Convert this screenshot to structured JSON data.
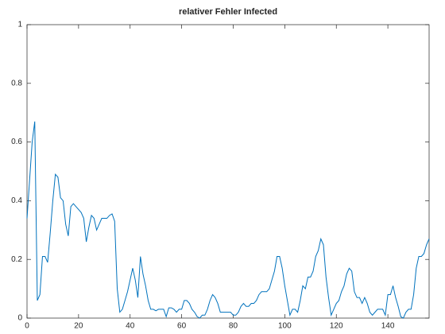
{
  "chart_data": {
    "type": "line",
    "title": "relativer Fehler Infected",
    "x": [
      0,
      1,
      2,
      3,
      4,
      5,
      6,
      7,
      8,
      9,
      10,
      11,
      12,
      13,
      14,
      15,
      16,
      17,
      18,
      19,
      20,
      21,
      22,
      23,
      24,
      25,
      26,
      27,
      28,
      29,
      30,
      31,
      32,
      33,
      34,
      35,
      36,
      37,
      38,
      39,
      40,
      41,
      42,
      43,
      44,
      45,
      46,
      47,
      48,
      49,
      50,
      51,
      52,
      53,
      54,
      55,
      56,
      57,
      58,
      59,
      60,
      61,
      62,
      63,
      64,
      65,
      66,
      67,
      68,
      69,
      70,
      71,
      72,
      73,
      74,
      75,
      76,
      77,
      78,
      79,
      80,
      81,
      82,
      83,
      84,
      85,
      86,
      87,
      88,
      89,
      90,
      91,
      92,
      93,
      94,
      95,
      96,
      97,
      98,
      99,
      100,
      101,
      102,
      103,
      104,
      105,
      106,
      107,
      108,
      109,
      110,
      111,
      112,
      113,
      114,
      115,
      116,
      117,
      118,
      119,
      120,
      121,
      122,
      123,
      124,
      125,
      126,
      127,
      128,
      129,
      130,
      131,
      132,
      133,
      134,
      135,
      136,
      137,
      138,
      139,
      140,
      141,
      142,
      143,
      144,
      145,
      146,
      147,
      148,
      149,
      150,
      151,
      152,
      153,
      154,
      155,
      156
    ],
    "series": [
      {
        "color": "#0072bd",
        "values": [
          0.34,
          0.47,
          0.6,
          0.67,
          0.06,
          0.08,
          0.21,
          0.21,
          0.19,
          0.29,
          0.4,
          0.49,
          0.48,
          0.41,
          0.4,
          0.32,
          0.28,
          0.38,
          0.39,
          0.38,
          0.37,
          0.36,
          0.34,
          0.26,
          0.31,
          0.35,
          0.34,
          0.3,
          0.32,
          0.34,
          0.34,
          0.34,
          0.35,
          0.355,
          0.33,
          0.1,
          0.02,
          0.03,
          0.06,
          0.09,
          0.13,
          0.17,
          0.13,
          0.07,
          0.21,
          0.15,
          0.11,
          0.06,
          0.03,
          0.03,
          0.025,
          0.03,
          0.03,
          0.03,
          0.005,
          0.035,
          0.035,
          0.03,
          0.02,
          0.03,
          0.03,
          0.06,
          0.06,
          0.05,
          0.03,
          0.02,
          0.005,
          0.0,
          0.01,
          0.01,
          0.03,
          0.06,
          0.08,
          0.07,
          0.05,
          0.02,
          0.02,
          0.02,
          0.02,
          0.02,
          0.01,
          0.01,
          0.02,
          0.04,
          0.05,
          0.04,
          0.04,
          0.05,
          0.05,
          0.06,
          0.08,
          0.09,
          0.09,
          0.09,
          0.1,
          0.13,
          0.16,
          0.21,
          0.21,
          0.17,
          0.11,
          0.06,
          0.01,
          0.03,
          0.03,
          0.02,
          0.06,
          0.11,
          0.1,
          0.14,
          0.14,
          0.16,
          0.21,
          0.23,
          0.27,
          0.25,
          0.14,
          0.07,
          0.01,
          0.03,
          0.05,
          0.06,
          0.09,
          0.11,
          0.15,
          0.17,
          0.16,
          0.09,
          0.07,
          0.07,
          0.05,
          0.07,
          0.05,
          0.02,
          0.01,
          0.02,
          0.03,
          0.03,
          0.03,
          0.01,
          0.08,
          0.08,
          0.11,
          0.07,
          0.04,
          0.005,
          0.0,
          0.02,
          0.03,
          0.03,
          0.08,
          0.17,
          0.21,
          0.21,
          0.22,
          0.25,
          0.27
        ]
      }
    ],
    "xlim": [
      0,
      156
    ],
    "xticks": [
      0,
      20,
      40,
      60,
      80,
      100,
      120,
      140
    ],
    "ylim": [
      0,
      1
    ],
    "yticks": [
      0,
      0.2,
      0.4,
      0.6,
      0.8,
      1
    ]
  }
}
